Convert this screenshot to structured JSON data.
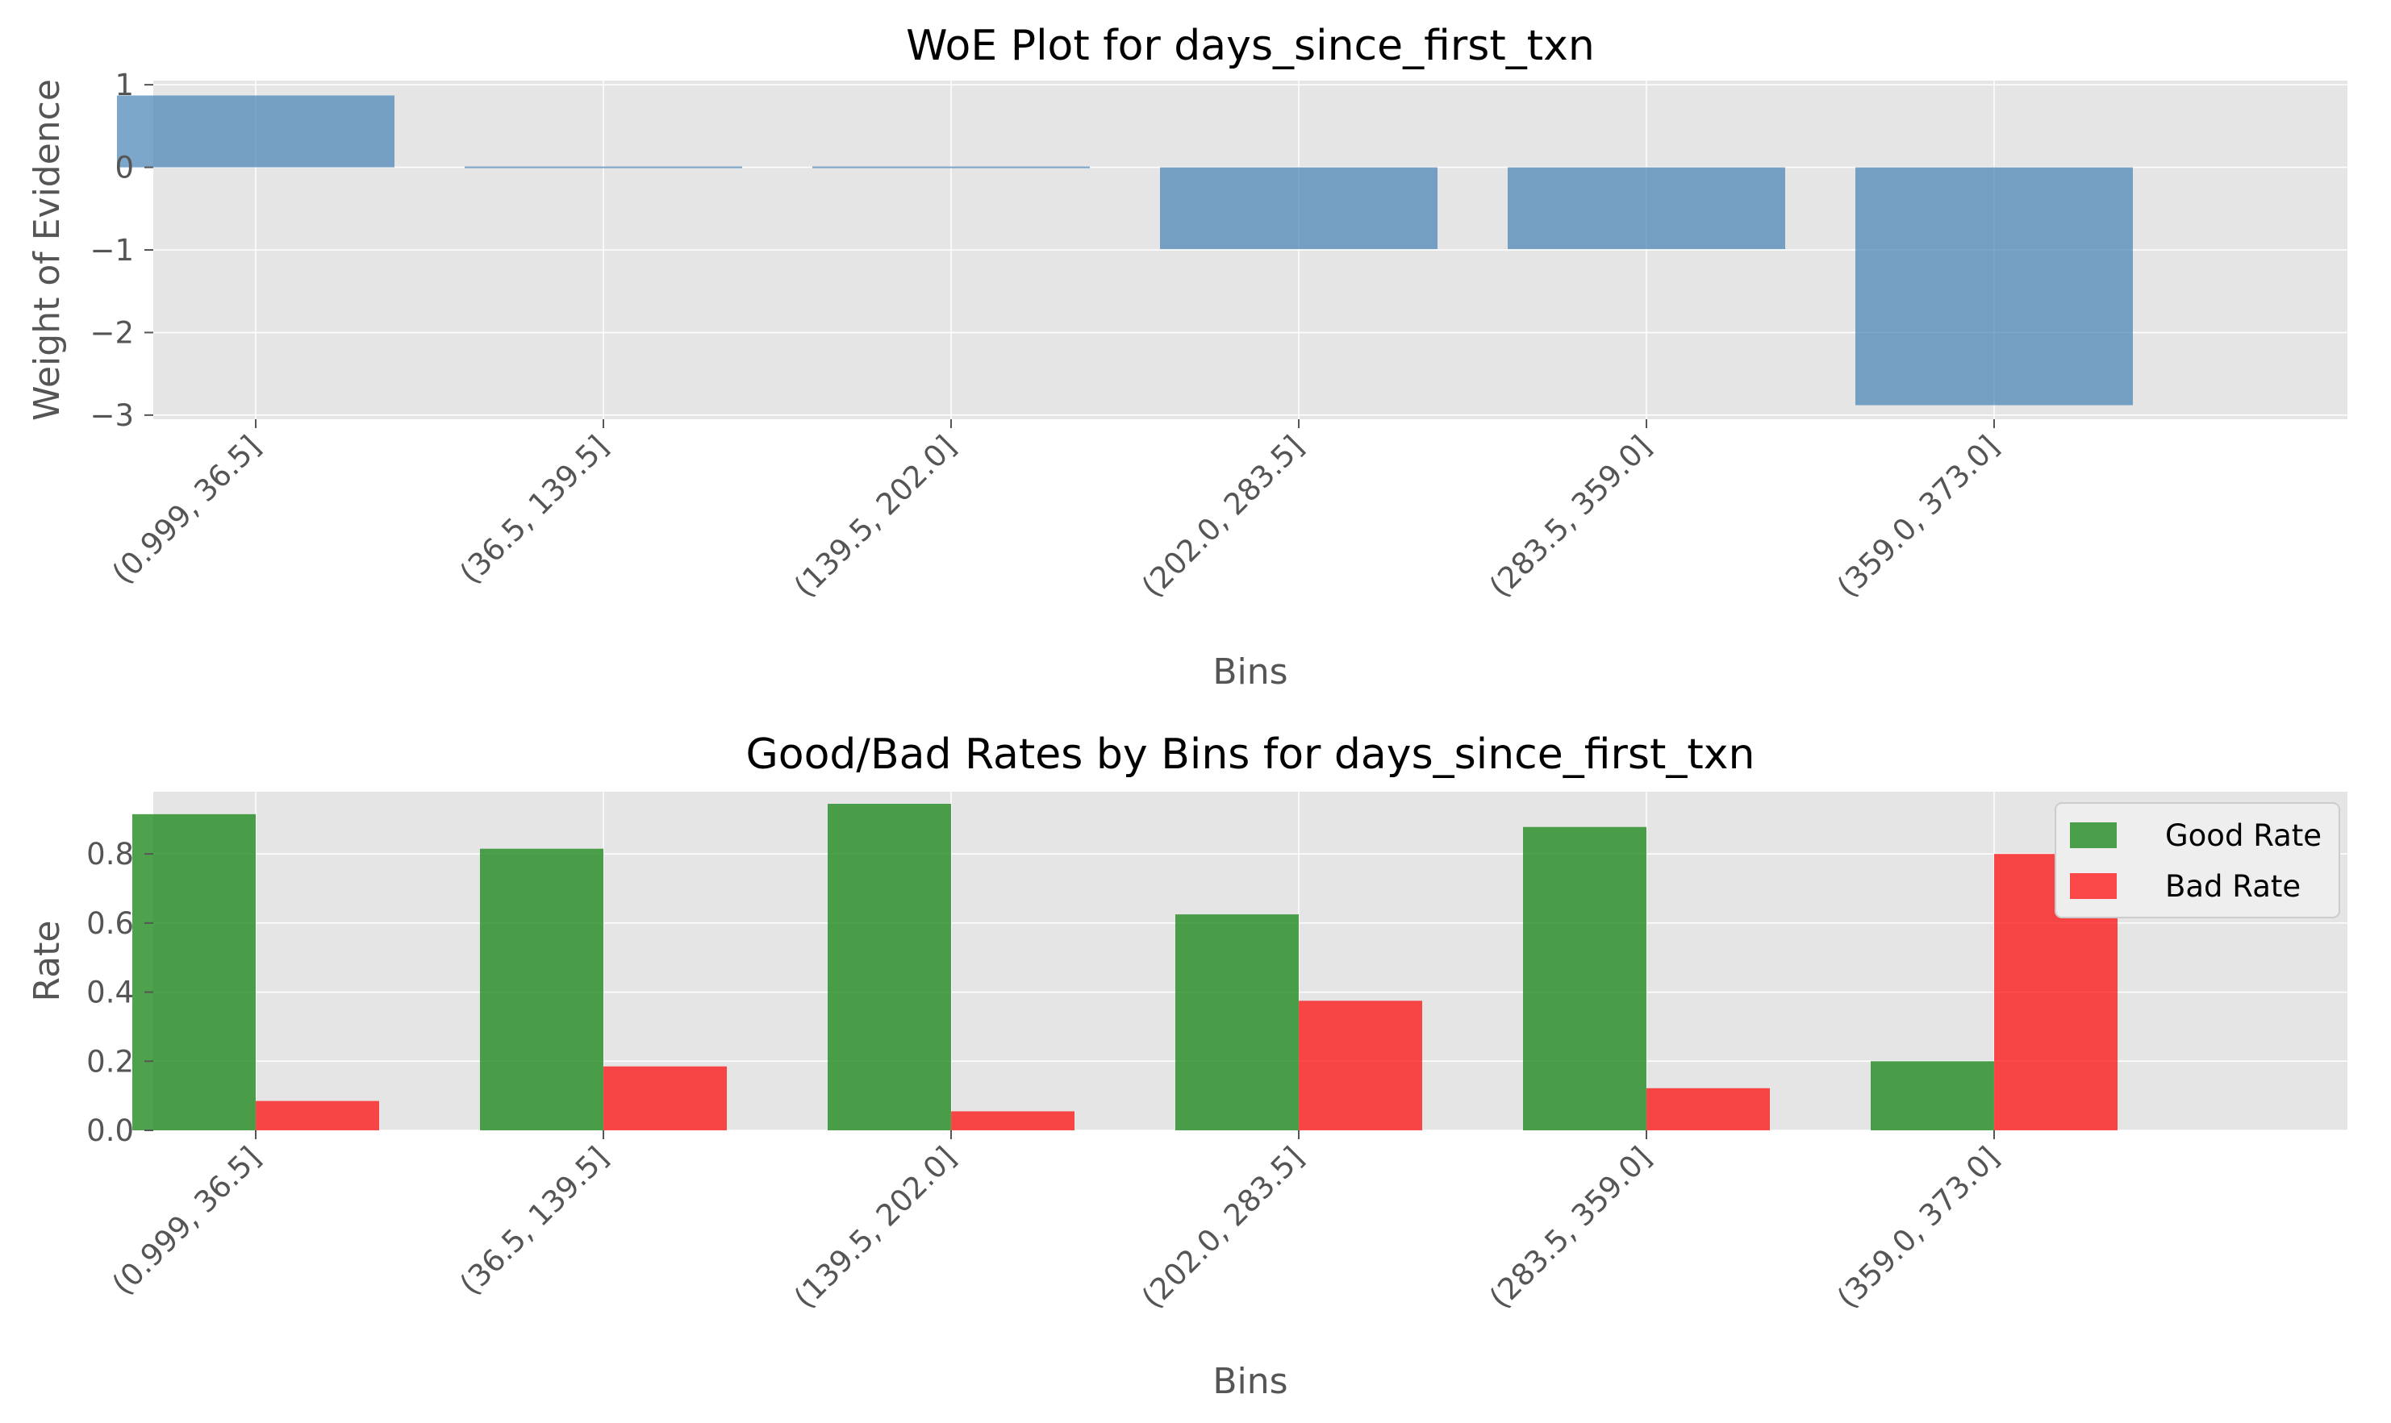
{
  "colors": {
    "woe_bar": "#4682b4",
    "good": "#228b22",
    "bad": "#ff0000",
    "panel_bg": "#e5e5e5",
    "grid": "#ffffff",
    "tick_text": "#555555"
  },
  "chart_data": [
    {
      "type": "bar",
      "title": "WoE Plot for days_since_first_txn",
      "xlabel": "Bins",
      "ylabel": "Weight of Evidence",
      "categories": [
        "(0.999, 36.5]",
        "(36.5, 139.5]",
        "(139.5, 202.0]",
        "(202.0, 283.5]",
        "(283.5, 359.0]",
        "(359.0, 373.0]"
      ],
      "values": [
        0.87,
        -0.01,
        -0.01,
        -0.99,
        -0.99,
        -2.88
      ],
      "ylim": [
        -3.05,
        1.05
      ],
      "yticks": [
        1,
        0,
        -1,
        -2,
        -3
      ],
      "ytick_labels": [
        "1",
        "0",
        "−1",
        "−2",
        "−3"
      ],
      "grid": true
    },
    {
      "type": "bar",
      "title": "Good/Bad Rates by Bins for days_since_first_txn",
      "xlabel": "Bins",
      "ylabel": "Rate",
      "categories": [
        "(0.999, 36.5]",
        "(36.5, 139.5]",
        "(139.5, 202.0]",
        "(202.0, 283.5]",
        "(283.5, 359.0]",
        "(359.0, 373.0]"
      ],
      "series": [
        {
          "name": "Good Rate",
          "values": [
            0.915,
            0.815,
            0.945,
            0.625,
            0.878,
            0.2
          ]
        },
        {
          "name": "Bad Rate",
          "values": [
            0.085,
            0.185,
            0.055,
            0.375,
            0.122,
            0.8
          ]
        }
      ],
      "ylim": [
        0,
        0.98
      ],
      "yticks": [
        0.0,
        0.2,
        0.4,
        0.6,
        0.8
      ],
      "ytick_labels": [
        "0.0",
        "0.2",
        "0.4",
        "0.6",
        "0.8"
      ],
      "legend": "top-right",
      "grid": true
    }
  ]
}
